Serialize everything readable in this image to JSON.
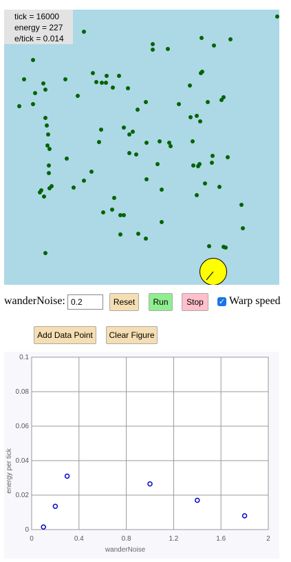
{
  "readout": {
    "tick": "tick = 16000",
    "energy": "energy = 227",
    "eptick": "e/tick = 0.014"
  },
  "colors": {
    "field": "#add8e6",
    "food": "#006400",
    "agent": "#ffff00",
    "reset": "#f5deb3",
    "run": "#90ee90",
    "stop": "#ffc0cb"
  },
  "food": [
    [
      403,
      24
    ],
    [
      122,
      46
    ],
    [
      293,
      55
    ],
    [
      222,
      64
    ],
    [
      335,
      57
    ],
    [
      311,
      66
    ],
    [
      222,
      72
    ],
    [
      244,
      71
    ],
    [
      48,
      87
    ],
    [
      135,
      106
    ],
    [
      35,
      115
    ],
    [
      63,
      121
    ],
    [
      95,
      115
    ],
    [
      294,
      104
    ],
    [
      292,
      106
    ],
    [
      173,
      110
    ],
    [
      155,
      110
    ],
    [
      140,
      119
    ],
    [
      148,
      120
    ],
    [
      154,
      120
    ],
    [
      186,
      128
    ],
    [
      164,
      127
    ],
    [
      51,
      135
    ],
    [
      66,
      130
    ],
    [
      113,
      139
    ],
    [
      322,
      145
    ],
    [
      325,
      141
    ],
    [
      276,
      124
    ],
    [
      48,
      151
    ],
    [
      28,
      154
    ],
    [
      200,
      159
    ],
    [
      212,
      148
    ],
    [
      260,
      151
    ],
    [
      302,
      148
    ],
    [
      66,
      171
    ],
    [
      277,
      170
    ],
    [
      286,
      168
    ],
    [
      291,
      176
    ],
    [
      68,
      182
    ],
    [
      180,
      185
    ],
    [
      147,
      188
    ],
    [
      188,
      195
    ],
    [
      193,
      191
    ],
    [
      70,
      195
    ],
    [
      213,
      207
    ],
    [
      232,
      205
    ],
    [
      246,
      207
    ],
    [
      144,
      206
    ],
    [
      248,
      212
    ],
    [
      280,
      205
    ],
    [
      69,
      211
    ],
    [
      72,
      216
    ],
    [
      188,
      222
    ],
    [
      198,
      224
    ],
    [
      309,
      226
    ],
    [
      331,
      228
    ],
    [
      308,
      236
    ],
    [
      281,
      240
    ],
    [
      97,
      230
    ],
    [
      229,
      238
    ],
    [
      290,
      238
    ],
    [
      288,
      241
    ],
    [
      71,
      240
    ],
    [
      71,
      251
    ],
    [
      133,
      249
    ],
    [
      298,
      266
    ],
    [
      319,
      271
    ],
    [
      122,
      262
    ],
    [
      213,
      260
    ],
    [
      235,
      275
    ],
    [
      75,
      270
    ],
    [
      72,
      273
    ],
    [
      60,
      276
    ],
    [
      58,
      279
    ],
    [
      107,
      272
    ],
    [
      286,
      283
    ],
    [
      64,
      285
    ],
    [
      166,
      287
    ],
    [
      351,
      297
    ],
    [
      150,
      308
    ],
    [
      163,
      304
    ],
    [
      175,
      312
    ],
    [
      180,
      312
    ],
    [
      235,
      322
    ],
    [
      353,
      331
    ],
    [
      175,
      340
    ],
    [
      201,
      339
    ],
    [
      212,
      346
    ],
    [
      304,
      357
    ],
    [
      325,
      358
    ],
    [
      328,
      359
    ],
    [
      66,
      367
    ]
  ],
  "controls": {
    "noise_label": "wanderNoise:",
    "noise_value": "0.2",
    "reset_label": "Reset",
    "run_label": "Run",
    "stop_label": "Stop",
    "warp_label": "Warp speed",
    "warp_checked": true,
    "add_label": "Add Data Point",
    "clear_label": "Clear Figure",
    "checkmark": "✓"
  },
  "chart_data": {
    "type": "scatter",
    "xlabel": "wanderNoise",
    "ylabel": "energy per tick",
    "xlim": [
      0,
      2
    ],
    "ylim": [
      0,
      0.1
    ],
    "xticks": [
      "0",
      "0.4",
      "0.8",
      "1.2",
      "1.6",
      "2"
    ],
    "yticks": [
      "0",
      "0.02",
      "0.04",
      "0.06",
      "0.08",
      "0.1"
    ],
    "xtick_values": [
      0,
      0.4,
      0.8,
      1.2,
      1.6,
      2
    ],
    "ytick_values": [
      0,
      0.02,
      0.04,
      0.06,
      0.08,
      0.1
    ],
    "grid": true,
    "marker_color": "#0000cc",
    "points": [
      {
        "x": 0.1,
        "y": 0.0015
      },
      {
        "x": 0.2,
        "y": 0.0135
      },
      {
        "x": 0.3,
        "y": 0.031
      },
      {
        "x": 1.0,
        "y": 0.0265
      },
      {
        "x": 1.4,
        "y": 0.017
      },
      {
        "x": 1.8,
        "y": 0.008
      }
    ]
  }
}
